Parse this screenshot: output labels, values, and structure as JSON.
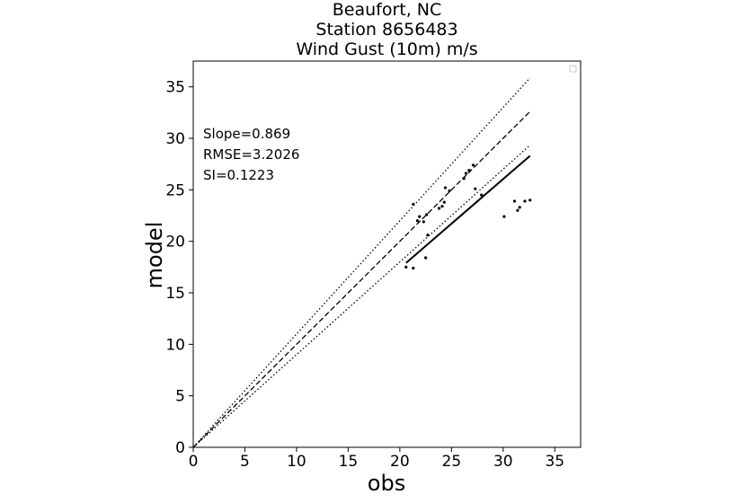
{
  "title": {
    "line1": "Beaufort, NC",
    "line2": "Station 8656483",
    "line3": "Wind Gust (10m) m/s"
  },
  "stats": {
    "slope": "Slope=0.869",
    "rmse": "RMSE=3.2026",
    "si": "SI=0.1223"
  },
  "chart_data": {
    "type": "scatter",
    "title": "Beaufort, NC\nStation 8656483\nWind Gust (10m) m/s",
    "xlabel": "obs",
    "ylabel": "model",
    "xlim": [
      0,
      37.5
    ],
    "ylim": [
      0,
      37.5
    ],
    "xticks": [
      0,
      5,
      10,
      15,
      20,
      25,
      30,
      35
    ],
    "yticks": [
      0,
      5,
      10,
      15,
      20,
      25,
      30,
      35
    ],
    "grid": false,
    "legend": "top-right (empty)",
    "points": [
      {
        "x": 20.6,
        "y": 17.5
      },
      {
        "x": 21.3,
        "y": 17.4
      },
      {
        "x": 21.3,
        "y": 23.6
      },
      {
        "x": 21.7,
        "y": 22.0
      },
      {
        "x": 21.9,
        "y": 22.4
      },
      {
        "x": 22.3,
        "y": 21.9
      },
      {
        "x": 22.5,
        "y": 18.4
      },
      {
        "x": 22.6,
        "y": 22.6
      },
      {
        "x": 22.7,
        "y": 20.6
      },
      {
        "x": 23.8,
        "y": 23.2
      },
      {
        "x": 24.1,
        "y": 23.4
      },
      {
        "x": 24.3,
        "y": 23.8
      },
      {
        "x": 24.4,
        "y": 25.2
      },
      {
        "x": 24.8,
        "y": 24.9
      },
      {
        "x": 26.2,
        "y": 26.1
      },
      {
        "x": 26.4,
        "y": 26.6
      },
      {
        "x": 26.7,
        "y": 26.9
      },
      {
        "x": 27.1,
        "y": 27.4
      },
      {
        "x": 27.3,
        "y": 25.1
      },
      {
        "x": 27.9,
        "y": 24.5
      },
      {
        "x": 30.1,
        "y": 22.4
      },
      {
        "x": 31.1,
        "y": 23.9
      },
      {
        "x": 31.4,
        "y": 23.0
      },
      {
        "x": 31.6,
        "y": 23.3
      },
      {
        "x": 32.1,
        "y": 23.9
      },
      {
        "x": 32.6,
        "y": 24.0
      }
    ],
    "lines": [
      {
        "name": "1:1",
        "style": "dashed",
        "x": [
          0,
          32.6
        ],
        "y": [
          0,
          32.6
        ]
      },
      {
        "name": "+10%",
        "style": "dotted",
        "x": [
          0,
          32.6
        ],
        "y": [
          0,
          35.86
        ]
      },
      {
        "name": "-10%",
        "style": "dotted",
        "x": [
          0,
          32.6
        ],
        "y": [
          0,
          29.34
        ]
      },
      {
        "name": "fit",
        "style": "solid",
        "x": [
          20.6,
          32.6
        ],
        "y": [
          17.9,
          28.3
        ]
      }
    ]
  }
}
